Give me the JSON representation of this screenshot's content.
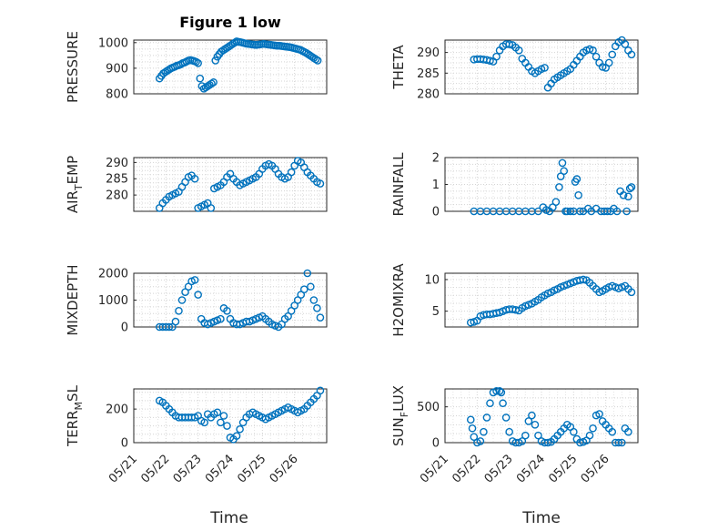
{
  "title": "Figure 1 low",
  "xlabel": "Time",
  "x_ticks": [
    "05/21",
    "05/22",
    "05/23",
    "05/24",
    "05/25",
    "05/26"
  ],
  "marker_color": "#0072bd",
  "chart_data": [
    {
      "type": "scatter",
      "ylabel": "PRESSURE",
      "yticks": [
        800,
        900,
        1000
      ],
      "ylim": [
        800,
        1010
      ],
      "x": [
        0.8,
        0.86,
        0.92,
        0.98,
        1.04,
        1.1,
        1.16,
        1.22,
        1.28,
        1.34,
        1.4,
        1.46,
        1.52,
        1.58,
        1.64,
        1.7,
        1.76,
        1.82,
        1.88,
        1.94,
        2.0,
        2.06,
        2.12,
        2.18,
        2.24,
        2.3,
        2.36,
        2.42,
        2.48,
        2.54,
        2.6,
        2.66,
        2.72,
        2.78,
        2.84,
        2.9,
        2.96,
        3.02,
        3.08,
        3.14,
        3.2,
        3.26,
        3.32,
        3.38,
        3.44,
        3.5,
        3.56,
        3.62,
        3.68,
        3.74,
        3.8,
        3.86,
        3.92,
        3.98,
        4.04,
        4.1,
        4.16,
        4.22,
        4.28,
        4.34,
        4.4,
        4.46,
        4.52,
        4.58,
        4.64,
        4.7,
        4.76,
        4.82,
        4.88,
        4.94,
        5.0,
        5.06,
        5.12,
        5.18,
        5.24,
        5.3,
        5.36,
        5.42,
        5.48,
        5.54,
        5.6,
        5.66,
        5.72
      ],
      "y": [
        860,
        870,
        880,
        885,
        890,
        895,
        900,
        903,
        906,
        910,
        912,
        915,
        920,
        922,
        926,
        930,
        932,
        930,
        928,
        925,
        920,
        860,
        830,
        820,
        825,
        830,
        835,
        840,
        845,
        930,
        945,
        955,
        965,
        970,
        975,
        980,
        985,
        990,
        995,
        1000,
        1005,
        1003,
        1002,
        1000,
        998,
        996,
        995,
        994,
        993,
        992,
        991,
        992,
        993,
        994,
        995,
        994,
        993,
        992,
        991,
        990,
        989,
        988,
        988,
        987,
        986,
        985,
        984,
        983,
        982,
        980,
        978,
        976,
        974,
        972,
        968,
        964,
        960,
        955,
        950,
        945,
        940,
        935,
        930
      ]
    },
    {
      "type": "scatter",
      "ylabel": "THETA",
      "yticks": [
        280,
        285,
        290
      ],
      "ylim": [
        280,
        293
      ],
      "x": [
        0.9,
        1.0,
        1.1,
        1.2,
        1.3,
        1.4,
        1.5,
        1.6,
        1.7,
        1.8,
        1.9,
        2.0,
        2.1,
        2.2,
        2.3,
        2.4,
        2.5,
        2.6,
        2.7,
        2.8,
        2.9,
        3.0,
        3.1,
        3.2,
        3.3,
        3.4,
        3.5,
        3.6,
        3.7,
        3.8,
        3.9,
        4.0,
        4.1,
        4.2,
        4.3,
        4.4,
        4.5,
        4.6,
        4.7,
        4.8,
        4.9,
        5.0,
        5.1,
        5.2,
        5.3,
        5.4,
        5.5,
        5.6,
        5.7,
        5.8
      ],
      "y": [
        288.3,
        288.4,
        288.4,
        288.3,
        288.2,
        288,
        287.8,
        289,
        290.5,
        291.5,
        292,
        292,
        291.8,
        291.2,
        290.5,
        288.5,
        287.5,
        286.5,
        285.5,
        285,
        285.5,
        286,
        286.3,
        281.5,
        282.5,
        283.5,
        284,
        284.5,
        285,
        285.5,
        286,
        287,
        288,
        289,
        290,
        290.5,
        290.8,
        290.5,
        289,
        287.5,
        286.5,
        286.3,
        287.5,
        289.5,
        291.5,
        292.5,
        293,
        292,
        290.5,
        289.5
      ]
    },
    {
      "type": "scatter",
      "ylabel": "AIR_TEMP",
      "ylabel_main": "AIR",
      "ylabel_sub": "T",
      "ylabel_rest": "EMP",
      "yticks": [
        280,
        285,
        290
      ],
      "ylim": [
        275,
        291.5
      ],
      "x": [
        0.8,
        0.9,
        1.0,
        1.1,
        1.2,
        1.3,
        1.4,
        1.5,
        1.6,
        1.7,
        1.8,
        1.9,
        2.0,
        2.1,
        2.2,
        2.3,
        2.4,
        2.5,
        2.6,
        2.7,
        2.8,
        2.9,
        3.0,
        3.1,
        3.2,
        3.3,
        3.4,
        3.5,
        3.6,
        3.7,
        3.8,
        3.9,
        4.0,
        4.1,
        4.2,
        4.3,
        4.4,
        4.5,
        4.6,
        4.7,
        4.8,
        4.9,
        5.0,
        5.1,
        5.2,
        5.3,
        5.4,
        5.5,
        5.6,
        5.7,
        5.8
      ],
      "y": [
        276,
        277.5,
        278.5,
        279.5,
        280,
        280.5,
        281,
        282.5,
        284,
        285.5,
        286,
        285,
        276,
        276.5,
        277,
        277.5,
        276,
        282,
        282.5,
        283,
        284,
        285.5,
        286.5,
        285,
        284,
        283,
        283.5,
        284,
        284.5,
        285,
        285.5,
        286.5,
        288,
        289,
        289.5,
        289,
        288,
        286.5,
        285.5,
        285,
        285.5,
        287,
        289,
        290.5,
        290,
        288.5,
        287,
        286,
        285,
        284,
        283.5
      ]
    },
    {
      "type": "scatter",
      "ylabel": "RAINFALL",
      "yticks": [
        0,
        1,
        2
      ],
      "ylim": [
        0,
        2
      ],
      "x": [
        0.9,
        1.1,
        1.3,
        1.5,
        1.7,
        1.9,
        2.1,
        2.3,
        2.5,
        2.7,
        2.9,
        3.05,
        3.15,
        3.25,
        3.35,
        3.45,
        3.55,
        3.6,
        3.65,
        3.7,
        3.75,
        3.8,
        3.9,
        4.0,
        4.05,
        4.1,
        4.15,
        4.2,
        4.3,
        4.45,
        4.55,
        4.7,
        4.85,
        4.95,
        5.05,
        5.15,
        5.25,
        5.35,
        5.45,
        5.55,
        5.65,
        5.7,
        5.75,
        5.8
      ],
      "y": [
        0,
        0,
        0,
        0,
        0,
        0,
        0,
        0,
        0,
        0,
        0,
        0.15,
        0.05,
        0,
        0.15,
        0.35,
        0.9,
        1.3,
        1.8,
        1.5,
        0,
        0,
        0,
        0,
        1.1,
        1.2,
        0.6,
        0,
        0,
        0.1,
        0,
        0.1,
        0,
        0,
        0,
        0,
        0.1,
        0,
        0.75,
        0.6,
        0,
        0.55,
        0.85,
        0.9
      ]
    },
    {
      "type": "scatter",
      "ylabel": "MIXDEPTH",
      "yticks": [
        0,
        1000,
        2000
      ],
      "ylim": [
        0,
        2000
      ],
      "x": [
        0.8,
        0.9,
        1.0,
        1.1,
        1.2,
        1.3,
        1.4,
        1.5,
        1.6,
        1.7,
        1.8,
        1.9,
        2.0,
        2.1,
        2.2,
        2.3,
        2.4,
        2.5,
        2.6,
        2.7,
        2.8,
        2.9,
        3.0,
        3.1,
        3.2,
        3.3,
        3.4,
        3.5,
        3.6,
        3.7,
        3.8,
        3.9,
        4.0,
        4.1,
        4.2,
        4.3,
        4.4,
        4.5,
        4.6,
        4.7,
        4.8,
        4.9,
        5.0,
        5.1,
        5.2,
        5.3,
        5.4,
        5.5,
        5.6,
        5.7,
        5.8
      ],
      "y": [
        0,
        0,
        0,
        0,
        0,
        200,
        600,
        1000,
        1300,
        1500,
        1700,
        1750,
        1200,
        300,
        150,
        100,
        150,
        200,
        250,
        300,
        700,
        600,
        300,
        150,
        100,
        100,
        150,
        200,
        200,
        250,
        300,
        350,
        400,
        300,
        200,
        100,
        50,
        0,
        100,
        300,
        400,
        600,
        800,
        1000,
        1200,
        1400,
        2000,
        1500,
        1000,
        700,
        350
      ]
    },
    {
      "type": "scatter",
      "ylabel": "H2OMIXRA",
      "yticks": [
        5,
        10
      ],
      "ylim": [
        2.5,
        11
      ],
      "x": [
        0.8,
        0.9,
        1.0,
        1.1,
        1.2,
        1.3,
        1.4,
        1.5,
        1.6,
        1.7,
        1.8,
        1.9,
        2.0,
        2.1,
        2.2,
        2.3,
        2.4,
        2.5,
        2.6,
        2.7,
        2.8,
        2.9,
        3.0,
        3.1,
        3.2,
        3.3,
        3.4,
        3.5,
        3.6,
        3.7,
        3.8,
        3.9,
        4.0,
        4.1,
        4.2,
        4.3,
        4.4,
        4.5,
        4.6,
        4.7,
        4.8,
        4.9,
        5.0,
        5.1,
        5.2,
        5.3,
        5.4,
        5.5,
        5.6,
        5.7,
        5.8
      ],
      "y": [
        3.2,
        3.3,
        3.5,
        4.2,
        4.4,
        4.5,
        4.5,
        4.6,
        4.7,
        4.8,
        5.0,
        5.2,
        5.3,
        5.3,
        5.2,
        5.1,
        5.5,
        5.8,
        6.0,
        6.2,
        6.5,
        6.8,
        7.2,
        7.5,
        7.8,
        8.0,
        8.3,
        8.5,
        8.8,
        9.0,
        9.2,
        9.4,
        9.6,
        9.8,
        9.9,
        10.0,
        9.9,
        9.5,
        9.0,
        8.5,
        8.0,
        8.2,
        8.5,
        8.8,
        9.0,
        8.8,
        8.6,
        8.8,
        9.0,
        8.5,
        8.0
      ]
    },
    {
      "type": "scatter",
      "ylabel": "TERR_MSL",
      "ylabel_main": "TERR",
      "ylabel_sub": "M",
      "ylabel_rest": "SL",
      "yticks": [
        0,
        200
      ],
      "ylim": [
        0,
        320
      ],
      "x": [
        0.8,
        0.9,
        1.0,
        1.1,
        1.2,
        1.3,
        1.4,
        1.5,
        1.6,
        1.7,
        1.8,
        1.9,
        2.0,
        2.1,
        2.2,
        2.3,
        2.4,
        2.5,
        2.6,
        2.7,
        2.8,
        2.9,
        3.0,
        3.1,
        3.2,
        3.3,
        3.4,
        3.5,
        3.6,
        3.7,
        3.8,
        3.9,
        4.0,
        4.1,
        4.2,
        4.3,
        4.4,
        4.5,
        4.6,
        4.7,
        4.8,
        4.9,
        5.0,
        5.1,
        5.2,
        5.3,
        5.4,
        5.5,
        5.6,
        5.7,
        5.8
      ],
      "y": [
        250,
        240,
        220,
        200,
        180,
        160,
        150,
        150,
        150,
        150,
        150,
        150,
        160,
        130,
        120,
        170,
        150,
        170,
        180,
        120,
        160,
        100,
        30,
        20,
        40,
        80,
        120,
        150,
        170,
        180,
        170,
        160,
        150,
        140,
        150,
        160,
        170,
        180,
        190,
        200,
        210,
        200,
        190,
        180,
        190,
        200,
        220,
        240,
        260,
        280,
        310
      ]
    },
    {
      "type": "scatter",
      "ylabel": "SUN_FLUX",
      "ylabel_main": "SUN",
      "ylabel_sub": "F",
      "ylabel_rest": "LUX",
      "yticks": [
        0,
        500
      ],
      "ylim": [
        0,
        750
      ],
      "x": [
        0.8,
        0.85,
        0.9,
        1.0,
        1.1,
        1.2,
        1.3,
        1.4,
        1.5,
        1.6,
        1.7,
        1.75,
        1.8,
        1.9,
        2.0,
        2.1,
        2.2,
        2.3,
        2.4,
        2.5,
        2.6,
        2.7,
        2.8,
        2.9,
        3.0,
        3.1,
        3.2,
        3.3,
        3.4,
        3.5,
        3.6,
        3.7,
        3.8,
        3.9,
        4.0,
        4.1,
        4.2,
        4.3,
        4.4,
        4.5,
        4.6,
        4.7,
        4.8,
        4.9,
        5.0,
        5.1,
        5.2,
        5.3,
        5.4,
        5.5,
        5.6,
        5.7
      ],
      "y": [
        320,
        200,
        80,
        0,
        20,
        150,
        350,
        550,
        700,
        720,
        720,
        700,
        550,
        350,
        150,
        20,
        0,
        0,
        20,
        100,
        300,
        380,
        250,
        100,
        20,
        0,
        0,
        10,
        50,
        100,
        150,
        200,
        250,
        220,
        150,
        50,
        0,
        10,
        30,
        100,
        200,
        380,
        400,
        300,
        250,
        200,
        150,
        0,
        0,
        0,
        200,
        150
      ]
    }
  ]
}
